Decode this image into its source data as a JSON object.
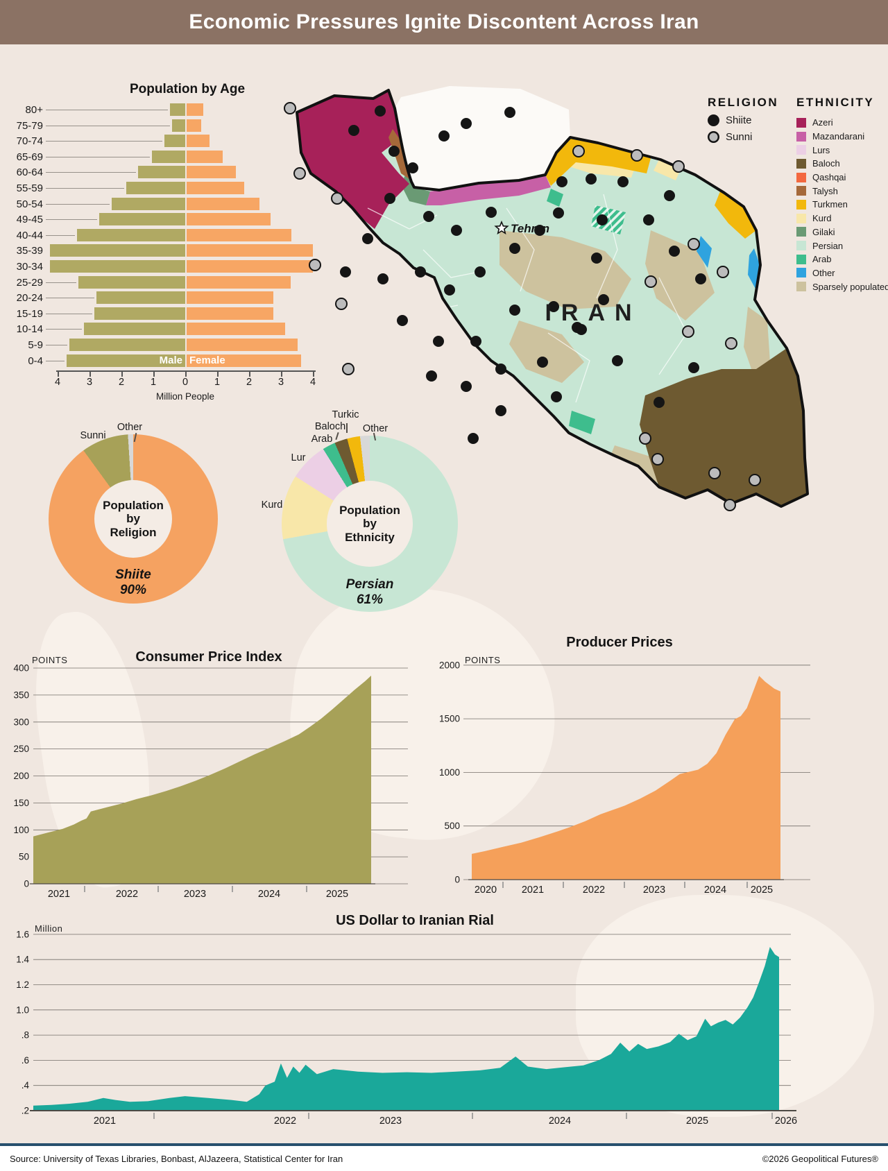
{
  "title": "Economic Pressures Ignite Discontent Across Iran",
  "footer": {
    "source": "Source: University of Texas Libraries, Bonbast, AlJazeera, Statistical Center for Iran",
    "copyright": "©2026 Geopolitical Futures®"
  },
  "map": {
    "country_label": "IRAN",
    "capital_label": "Tehran",
    "religion_legend": {
      "title": "RELIGION",
      "items": [
        {
          "label": "Shiite",
          "color": "#151515"
        },
        {
          "label": "Sunni",
          "color": "#bcbcbc"
        }
      ]
    },
    "ethnicity_legend": {
      "title": "ETHNICITY",
      "items": [
        {
          "label": "Azeri",
          "color": "#a72159"
        },
        {
          "label": "Mazandarani",
          "color": "#c760a6"
        },
        {
          "label": "Lurs",
          "color": "#eccfe5"
        },
        {
          "label": "Baloch",
          "color": "#6e5a31"
        },
        {
          "label": "Qashqai",
          "color": "#f3683f"
        },
        {
          "label": "Talysh",
          "color": "#a5693a"
        },
        {
          "label": "Turkmen",
          "color": "#f2b80c"
        },
        {
          "label": "Kurd",
          "color": "#f8e7a9"
        },
        {
          "label": "Gilaki",
          "color": "#6a9a74"
        },
        {
          "label": "Persian",
          "color": "#c7e6d4"
        },
        {
          "label": "Arab",
          "color": "#3ebd8d"
        },
        {
          "label": "Other",
          "color": "#2fa3df"
        },
        {
          "label": "Sparsely populated",
          "color": "#cdc29e"
        }
      ]
    }
  },
  "chart_data": {
    "pyramid": {
      "type": "bar",
      "title": "Population by Age",
      "xlabel": "Million People",
      "male_label": "Male",
      "female_label": "Female",
      "axis_ticks": [
        "4",
        "3",
        "2",
        "1",
        "0",
        "1",
        "2",
        "3",
        "4"
      ],
      "xlim_per_side": [
        0,
        4
      ],
      "colors": {
        "male": "#b0a963",
        "female": "#f7a664"
      },
      "rows": [
        {
          "age": "80+",
          "male": 0.48,
          "female": 0.52
        },
        {
          "age": "75-79",
          "male": 0.42,
          "female": 0.45
        },
        {
          "age": "70-74",
          "male": 0.65,
          "female": 0.72
        },
        {
          "age": "65-69",
          "male": 1.05,
          "female": 1.12
        },
        {
          "age": "60-64",
          "male": 1.48,
          "female": 1.55
        },
        {
          "age": "55-59",
          "male": 1.85,
          "female": 1.8
        },
        {
          "age": "50-54",
          "male": 2.3,
          "female": 2.28
        },
        {
          "age": "49-45",
          "male": 2.7,
          "female": 2.62
        },
        {
          "age": "40-44",
          "male": 3.4,
          "female": 3.28
        },
        {
          "age": "35-39",
          "male": 4.25,
          "female": 3.95
        },
        {
          "age": "30-34",
          "male": 4.25,
          "female": 3.95
        },
        {
          "age": "25-29",
          "male": 3.35,
          "female": 3.25
        },
        {
          "age": "20-24",
          "male": 2.78,
          "female": 2.72
        },
        {
          "age": "15-19",
          "male": 2.85,
          "female": 2.72
        },
        {
          "age": "10-14",
          "male": 3.18,
          "female": 3.08
        },
        {
          "age": "5-9",
          "male": 3.62,
          "female": 3.48
        },
        {
          "age": "0-4",
          "male": 3.72,
          "female": 3.58
        }
      ]
    },
    "religion_donut": {
      "type": "pie",
      "center_label": "Population\nby\nReligion",
      "highlight_label": "Shiite",
      "highlight_value": "90%",
      "slices": [
        {
          "label": "Shiite",
          "value": 90,
          "color": "#f5a261"
        },
        {
          "label": "Sunni",
          "value": 9,
          "color": "#a7a158"
        },
        {
          "label": "Other",
          "value": 1,
          "color": "#d8d8d8"
        }
      ]
    },
    "ethnicity_donut": {
      "type": "pie",
      "center_label": "Population\nby\nEthnicity",
      "highlight_label": "Persian",
      "highlight_value": "61%",
      "slices": [
        {
          "label": "Persian",
          "value": 61,
          "color": "#c7e6d4"
        },
        {
          "label": "Kurd",
          "value": 10,
          "color": "#f8e7a9"
        },
        {
          "label": "Lur",
          "value": 6,
          "color": "#eccfe5"
        },
        {
          "label": "Arab",
          "value": 2,
          "color": "#3ebd8d"
        },
        {
          "label": "Baloch",
          "value": 2,
          "color": "#6e5a31"
        },
        {
          "label": "Turkic",
          "value": 2,
          "color": "#f2b80c"
        },
        {
          "label": "Other",
          "value": 1.5,
          "color": "#d8d8d8"
        }
      ]
    },
    "cpi": {
      "type": "area",
      "title": "Consumer Price Index",
      "unit_label": "POINTS",
      "color": "#a7a158",
      "ylim": [
        0,
        400
      ],
      "yticks": [
        0,
        50,
        100,
        150,
        200,
        250,
        300,
        350,
        400
      ],
      "xlabels": [
        "2021",
        "2022",
        "2023",
        "2024",
        "2025"
      ],
      "points": [
        [
          2021.3,
          88
        ],
        [
          2021.5,
          95
        ],
        [
          2021.7,
          102
        ],
        [
          2021.85,
          110
        ],
        [
          2021.95,
          117
        ],
        [
          2022.02,
          121
        ],
        [
          2022.08,
          134
        ],
        [
          2022.3,
          142
        ],
        [
          2022.5,
          149
        ],
        [
          2022.7,
          157
        ],
        [
          2022.9,
          164
        ],
        [
          2023.1,
          172
        ],
        [
          2023.3,
          181
        ],
        [
          2023.5,
          191
        ],
        [
          2023.7,
          202
        ],
        [
          2023.9,
          214
        ],
        [
          2024.1,
          227
        ],
        [
          2024.3,
          240
        ],
        [
          2024.5,
          252
        ],
        [
          2024.7,
          264
        ],
        [
          2024.9,
          277
        ],
        [
          2025.05,
          291
        ],
        [
          2025.2,
          306
        ],
        [
          2025.35,
          323
        ],
        [
          2025.5,
          341
        ],
        [
          2025.65,
          359
        ],
        [
          2025.8,
          376
        ],
        [
          2025.88,
          386
        ]
      ]
    },
    "ppi": {
      "type": "area",
      "title": "Producer Prices",
      "unit_label": "POINTS",
      "color": "#f5a05a",
      "ylim": [
        0,
        2000
      ],
      "yticks": [
        0,
        500,
        1000,
        1500,
        2000
      ],
      "xlabels": [
        "2020",
        "2021",
        "2022",
        "2023",
        "2024",
        "2025"
      ],
      "points": [
        [
          2020.49,
          240
        ],
        [
          2020.7,
          265
        ],
        [
          2021,
          305
        ],
        [
          2021.3,
          345
        ],
        [
          2021.6,
          395
        ],
        [
          2021.9,
          450
        ],
        [
          2022.1,
          490
        ],
        [
          2022.35,
          545
        ],
        [
          2022.6,
          610
        ],
        [
          2022.8,
          650
        ],
        [
          2023,
          690
        ],
        [
          2023.25,
          755
        ],
        [
          2023.5,
          830
        ],
        [
          2023.75,
          925
        ],
        [
          2023.9,
          985
        ],
        [
          2024.05,
          1005
        ],
        [
          2024.2,
          1025
        ],
        [
          2024.35,
          1080
        ],
        [
          2024.5,
          1180
        ],
        [
          2024.65,
          1350
        ],
        [
          2024.8,
          1495
        ],
        [
          2024.9,
          1525
        ],
        [
          2025,
          1600
        ],
        [
          2025.1,
          1750
        ],
        [
          2025.2,
          1900
        ],
        [
          2025.3,
          1845
        ],
        [
          2025.45,
          1780
        ],
        [
          2025.55,
          1755
        ]
      ]
    },
    "usd": {
      "type": "area",
      "title": "US Dollar to Iranian Rial",
      "unit_label": "Million",
      "color": "#1aa89a",
      "ylim": [
        0.2,
        1.6
      ],
      "yticks": [
        ".2",
        ".4",
        ".6",
        ".8",
        "1.0",
        "1.2",
        "1.4",
        "1.6"
      ],
      "xlabels": [
        "2021",
        "2022",
        "2023",
        "2024",
        "2025",
        "2026"
      ],
      "points": [
        [
          2021.0,
          0.24
        ],
        [
          2021.15,
          0.245
        ],
        [
          2021.3,
          0.255
        ],
        [
          2021.45,
          0.27
        ],
        [
          2021.58,
          0.3
        ],
        [
          2021.68,
          0.285
        ],
        [
          2021.8,
          0.27
        ],
        [
          2021.95,
          0.275
        ],
        [
          2022.1,
          0.3
        ],
        [
          2022.2,
          0.315
        ],
        [
          2022.35,
          0.3
        ],
        [
          2022.5,
          0.285
        ],
        [
          2022.6,
          0.27
        ],
        [
          2022.68,
          0.33
        ],
        [
          2022.72,
          0.4
        ],
        [
          2022.78,
          0.43
        ],
        [
          2022.82,
          0.575
        ],
        [
          2022.86,
          0.46
        ],
        [
          2022.9,
          0.55
        ],
        [
          2022.94,
          0.5
        ],
        [
          2022.98,
          0.565
        ],
        [
          2023.05,
          0.49
        ],
        [
          2023.15,
          0.53
        ],
        [
          2023.3,
          0.51
        ],
        [
          2023.45,
          0.5
        ],
        [
          2023.6,
          0.505
        ],
        [
          2023.75,
          0.5
        ],
        [
          2023.9,
          0.51
        ],
        [
          2024.05,
          0.52
        ],
        [
          2024.18,
          0.54
        ],
        [
          2024.28,
          0.63
        ],
        [
          2024.36,
          0.55
        ],
        [
          2024.48,
          0.53
        ],
        [
          2024.6,
          0.545
        ],
        [
          2024.72,
          0.56
        ],
        [
          2024.82,
          0.6
        ],
        [
          2024.9,
          0.65
        ],
        [
          2024.96,
          0.74
        ],
        [
          2025.02,
          0.67
        ],
        [
          2025.08,
          0.73
        ],
        [
          2025.14,
          0.69
        ],
        [
          2025.22,
          0.71
        ],
        [
          2025.3,
          0.745
        ],
        [
          2025.36,
          0.81
        ],
        [
          2025.42,
          0.76
        ],
        [
          2025.48,
          0.79
        ],
        [
          2025.54,
          0.93
        ],
        [
          2025.58,
          0.87
        ],
        [
          2025.63,
          0.9
        ],
        [
          2025.68,
          0.92
        ],
        [
          2025.73,
          0.885
        ],
        [
          2025.78,
          0.94
        ],
        [
          2025.83,
          1.02
        ],
        [
          2025.87,
          1.1
        ],
        [
          2025.91,
          1.22
        ],
        [
          2025.95,
          1.35
        ],
        [
          2025.985,
          1.5
        ],
        [
          2026.02,
          1.44
        ],
        [
          2026.05,
          1.42
        ]
      ]
    }
  }
}
